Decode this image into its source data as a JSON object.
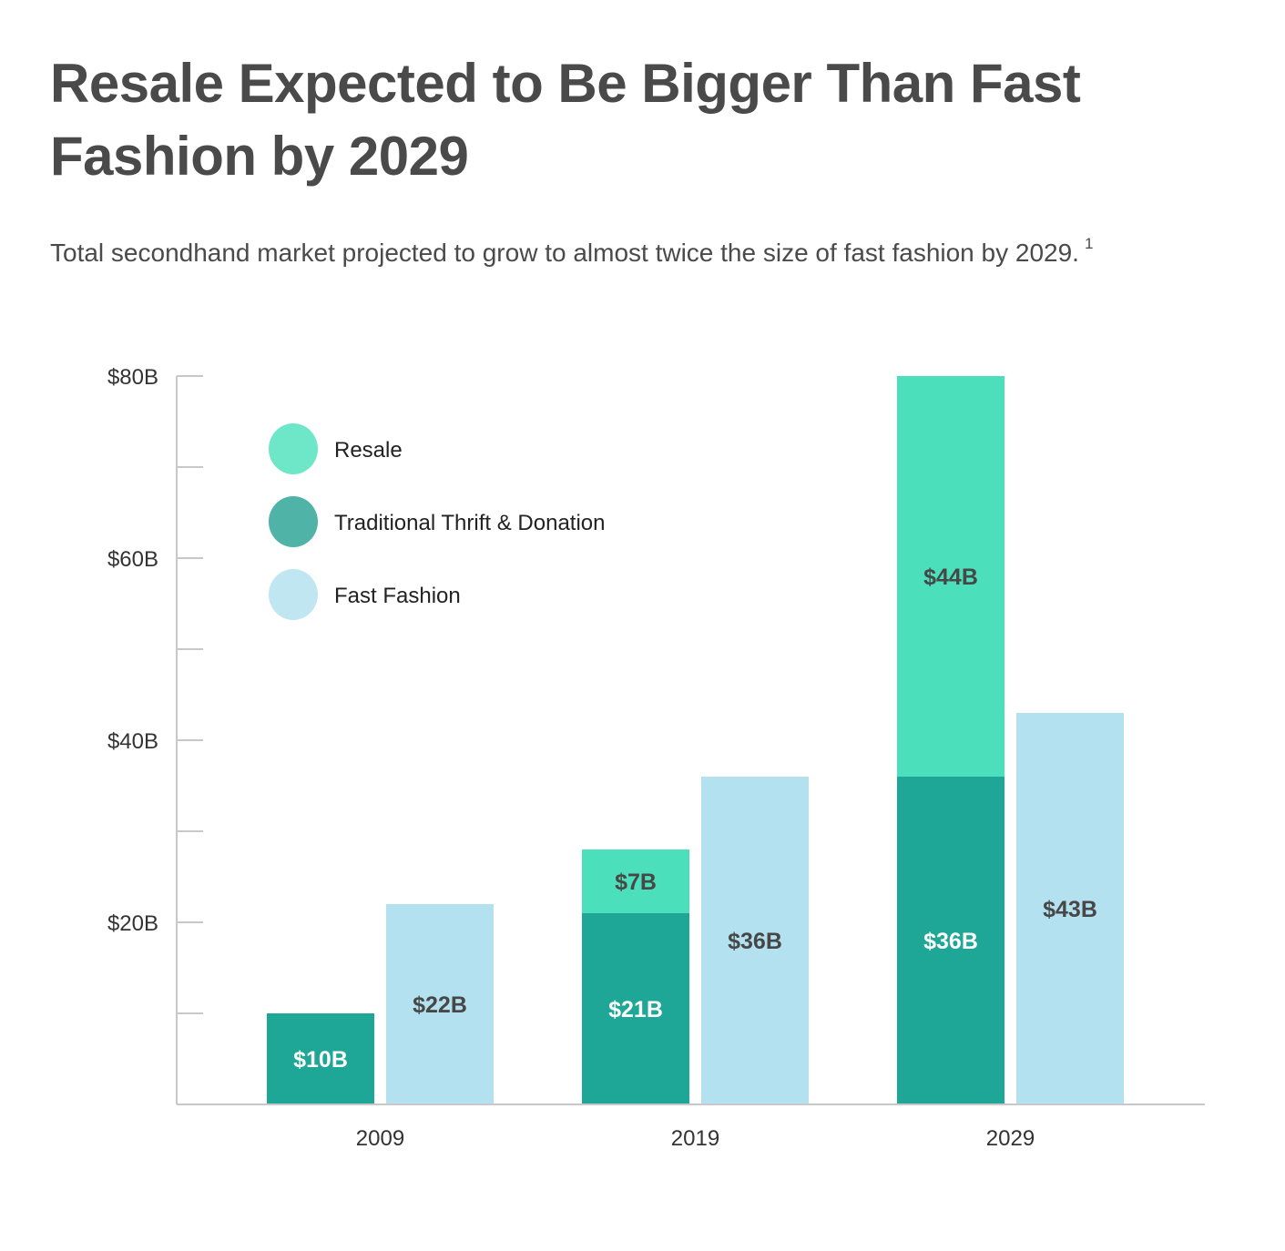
{
  "title": "Resale Expected to Be Bigger Than Fast Fashion by 2029",
  "subtitle": "Total secondhand market projected to grow to almost twice the size of fast fashion by 2029.",
  "footnote_marker": "1",
  "chart_data": {
    "type": "bar",
    "stacked_groups": true,
    "categories": [
      "2009",
      "2019",
      "2029"
    ],
    "series": [
      {
        "name": "Traditional Thrift & Donation",
        "values": [
          10,
          21,
          36
        ],
        "labels": [
          "$10B",
          "$21B",
          "$36B"
        ],
        "color": "#1EA696",
        "legend_color": "#4FB3A7",
        "stack": "secondhand",
        "label_color": "#ffffff"
      },
      {
        "name": "Resale",
        "values": [
          null,
          7,
          44
        ],
        "labels": [
          "",
          "$7B",
          "$44B"
        ],
        "color": "#4BE0BB",
        "legend_color": "#6EE7C9",
        "stack": "secondhand",
        "label_color": "#474747"
      },
      {
        "name": "Fast Fashion",
        "values": [
          22,
          36,
          43
        ],
        "labels": [
          "$22B",
          "$36B",
          "$43B"
        ],
        "color": "#B3E1EF",
        "legend_color": "#C0E6F2",
        "stack": "fast",
        "label_color": "#474747"
      }
    ],
    "legend_order": [
      "Resale",
      "Traditional Thrift & Donation",
      "Fast Fashion"
    ],
    "ylim": [
      0,
      80
    ],
    "yticks": [
      20,
      40,
      60,
      80
    ],
    "ytick_labels": [
      "$20B",
      "$40B",
      "$60B",
      "$80B"
    ],
    "minor_ticks": [
      10,
      30,
      50,
      70
    ],
    "unit": "$B",
    "grid": false,
    "legend_position": "top-left",
    "xlabel": "",
    "ylabel": ""
  }
}
